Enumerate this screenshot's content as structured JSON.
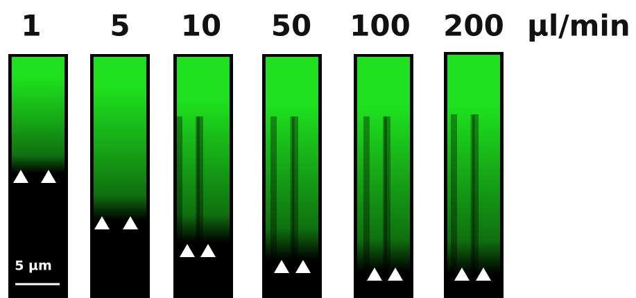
{
  "panels": [
    {
      "label": "1"
    },
    {
      "label": "5"
    },
    {
      "label": "10"
    },
    {
      "label": "50"
    },
    {
      "label": "100"
    },
    {
      "label": "200"
    }
  ],
  "unit": "µl/min",
  "scale_bar": {
    "label": "5 µm"
  }
}
